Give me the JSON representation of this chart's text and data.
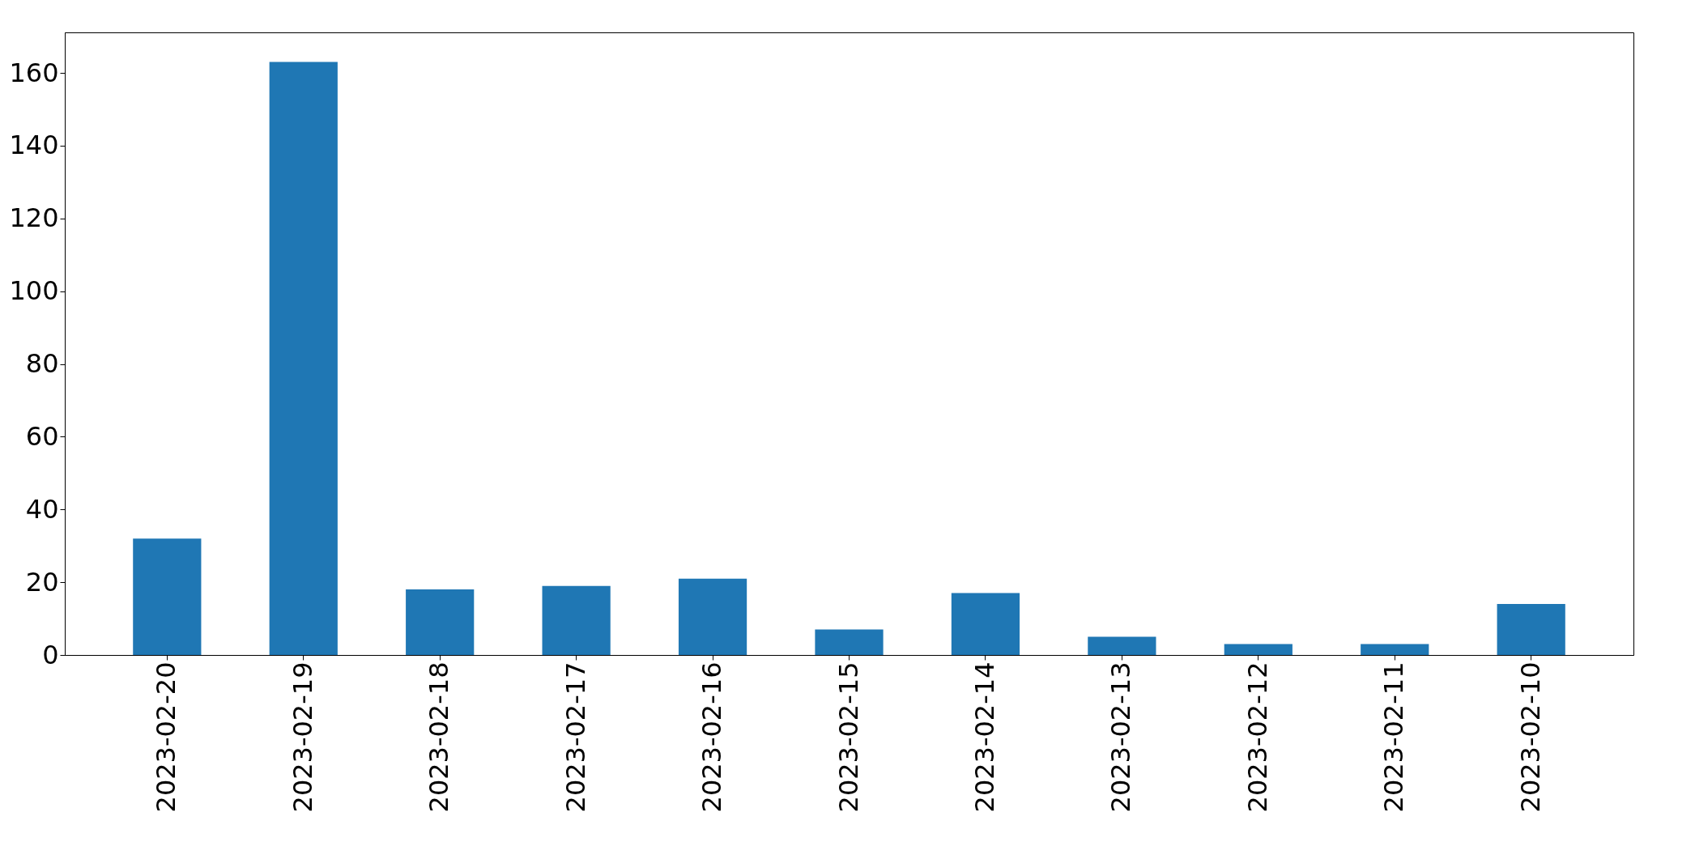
{
  "chart_data": {
    "type": "bar",
    "categories": [
      "2023-02-20",
      "2023-02-19",
      "2023-02-18",
      "2023-02-17",
      "2023-02-16",
      "2023-02-15",
      "2023-02-14",
      "2023-02-13",
      "2023-02-12",
      "2023-02-11",
      "2023-02-10"
    ],
    "values": [
      32,
      163,
      18,
      19,
      21,
      7,
      17,
      5,
      3,
      3,
      14
    ],
    "color": "#1f77b4",
    "ylim": [
      0,
      171.15
    ],
    "yticks": [
      0,
      20,
      40,
      60,
      80,
      100,
      120,
      140,
      160
    ],
    "grid": false
  }
}
